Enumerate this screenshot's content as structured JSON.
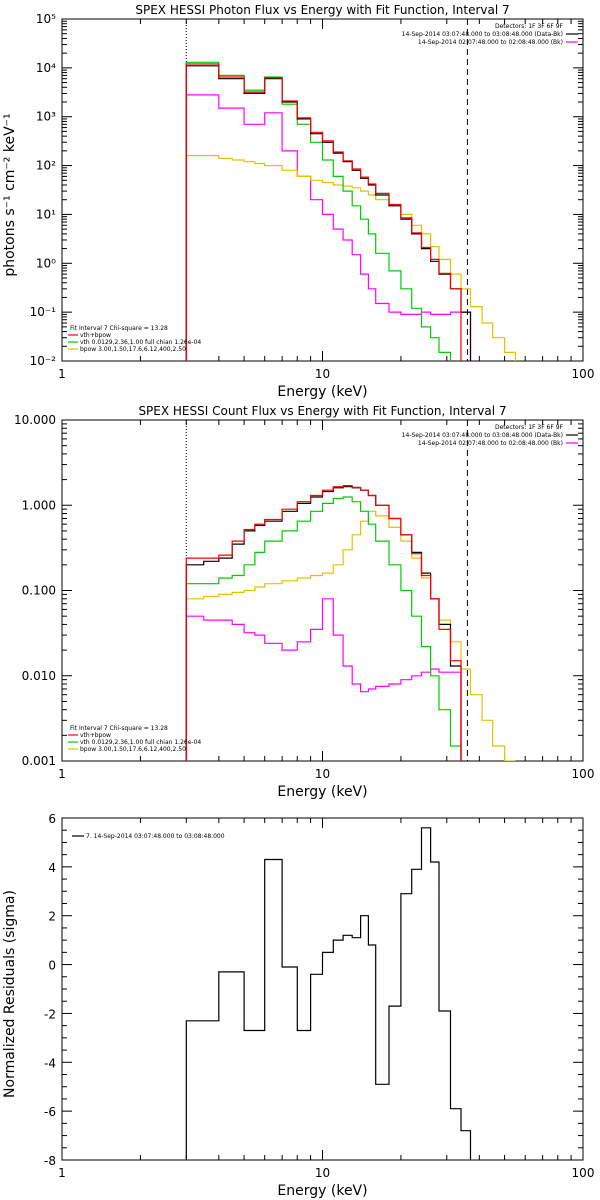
{
  "colors": {
    "data": "#000000",
    "total": "#ff0000",
    "vth": "#00cc00",
    "bpow": "#e6c000",
    "background": "#ff00ff"
  },
  "chart_data": [
    {
      "type": "line",
      "title": "SPEX HESSI Photon Flux vs Energy with Fit Function, Interval 7",
      "xlabel": "Energy (keV)",
      "ylabel": "photons s⁻¹ cm⁻² keV⁻¹",
      "xscale": "log",
      "yscale": "log",
      "xlim": [
        1,
        100
      ],
      "ylim": [
        0.01,
        100000
      ],
      "xticks": [
        "1",
        "10",
        "100"
      ],
      "yticks": [
        "10⁻²",
        "10⁻¹",
        "10⁰",
        "10¹",
        "10²",
        "10³",
        "10⁴",
        "10⁵"
      ],
      "grid": false,
      "legend_top": [
        "Detectors: 1F 3F 6F 9F",
        "14-Sep-2014 03:07:48.000 to 03:08:48.000 (Data-Bk)",
        "14-Sep-2014 02:07:48.000 to 02:08:48.000 (Bk)"
      ],
      "legend_bottom": [
        "Fit Interval 7   Chi-square = 13.28",
        "vth+bpow",
        "vth 0.0129,2.36,1.00  full chian 1.26e-04",
        "bpow 3.00,1.50,17.6,6.12,400,2.50"
      ],
      "vlines": [
        3,
        36
      ],
      "edges": [
        3,
        3.5,
        4,
        4.5,
        5,
        5.5,
        6,
        7,
        8,
        9,
        10,
        11,
        12,
        13,
        14,
        15,
        16,
        18,
        20,
        22,
        24,
        26,
        28,
        31,
        34,
        37,
        41,
        45,
        50,
        55,
        60
      ],
      "series": [
        {
          "name": "data",
          "values": [
            11000,
            11000,
            6000,
            6000,
            3000,
            3000,
            6000,
            2000,
            900,
            450,
            300,
            180,
            120,
            80,
            55,
            40,
            25,
            15,
            8,
            4,
            2,
            1.1,
            0.6,
            0.3,
            0.1,
            null,
            null,
            null,
            null,
            null
          ]
        },
        {
          "name": "vth+bpow",
          "values": [
            12000,
            12000,
            6500,
            6500,
            3200,
            3200,
            6300,
            2100,
            950,
            480,
            320,
            190,
            125,
            85,
            58,
            42,
            27,
            16,
            8.5,
            4.2,
            2.1,
            1.2,
            0.62,
            0.3,
            null,
            null,
            null,
            null,
            null,
            null
          ]
        },
        {
          "name": "vth",
          "values": [
            13000,
            13000,
            7000,
            7000,
            3500,
            3500,
            6500,
            1800,
            700,
            300,
            130,
            60,
            30,
            15,
            8,
            4,
            1.6,
            0.7,
            0.3,
            0.12,
            0.05,
            0.03,
            0.015,
            null,
            null,
            null,
            null,
            null,
            null,
            null
          ]
        },
        {
          "name": "bpow",
          "values": [
            160,
            160,
            140,
            130,
            120,
            110,
            100,
            80,
            60,
            50,
            45,
            40,
            38,
            35,
            30,
            25,
            20,
            15,
            10,
            6,
            4,
            2.2,
            1.2,
            0.6,
            0.3,
            0.13,
            0.06,
            0.03,
            0.015,
            null
          ]
        },
        {
          "name": "background",
          "values": [
            2800,
            2800,
            1500,
            1500,
            700,
            700,
            1200,
            200,
            60,
            20,
            10,
            5,
            3,
            1.5,
            0.6,
            0.3,
            0.15,
            0.1,
            0.09,
            0.09,
            0.1,
            0.09,
            0.09,
            0.1,
            0.1,
            null,
            null,
            null,
            null,
            null
          ]
        }
      ]
    },
    {
      "type": "line",
      "title": "SPEX HESSI Count Flux vs Energy with Fit Function, Interval 7",
      "xlabel": "Energy (keV)",
      "ylabel": "",
      "xscale": "log",
      "yscale": "log",
      "xlim": [
        1,
        100
      ],
      "ylim": [
        0.001,
        10
      ],
      "xticks": [
        "1",
        "10",
        "100"
      ],
      "yticks": [
        "0.001",
        "0.010",
        "0.100",
        "1.000",
        "10.000"
      ],
      "grid": false,
      "legend_top": [
        "Detectors: 1F 3F 6F 9F",
        "14-Sep-2014 03:07:48.000 to 03:08:48.000 (Data-Bk)",
        "14-Sep-2014 02:07:48.000 to 02:08:48.000 (Bk)"
      ],
      "legend_bottom": [
        "Fit Interval 7   Chi-square = 13.28",
        "vth+bpow",
        "vth 0.0129,2.36,1.00  full chian 1.26e-04",
        "bpow 3.00,1.50,17.6,6.12,400,2.50"
      ],
      "vlines": [
        3,
        36
      ],
      "edges": [
        3,
        3.5,
        4,
        4.5,
        5,
        5.5,
        6,
        7,
        8,
        9,
        10,
        11,
        12,
        13,
        14,
        15,
        16,
        18,
        20,
        22,
        24,
        26,
        28,
        31,
        34,
        37,
        41,
        45,
        50,
        55,
        60
      ],
      "series": [
        {
          "name": "data",
          "values": [
            0.2,
            0.22,
            0.24,
            0.35,
            0.5,
            0.58,
            0.65,
            0.85,
            1.05,
            1.25,
            1.45,
            1.6,
            1.65,
            1.6,
            1.5,
            1.3,
            1.0,
            0.7,
            0.45,
            0.28,
            0.16,
            0.08,
            0.04,
            0.013,
            null,
            null,
            null,
            null,
            null,
            null
          ]
        },
        {
          "name": "vth+bpow",
          "values": [
            0.24,
            0.24,
            0.26,
            0.38,
            0.52,
            0.6,
            0.68,
            0.9,
            1.1,
            1.3,
            1.5,
            1.65,
            1.7,
            1.62,
            1.5,
            1.3,
            1.0,
            0.7,
            0.45,
            0.27,
            0.15,
            0.08,
            0.035,
            0.015,
            null,
            null,
            null,
            null,
            null,
            null
          ]
        },
        {
          "name": "vth",
          "values": [
            0.12,
            0.12,
            0.14,
            0.15,
            0.2,
            0.28,
            0.38,
            0.5,
            0.65,
            0.85,
            1.05,
            1.2,
            1.25,
            1.1,
            0.85,
            0.6,
            0.38,
            0.2,
            0.1,
            0.05,
            0.022,
            0.01,
            0.004,
            0.0015,
            null,
            null,
            null,
            null,
            null,
            null
          ]
        },
        {
          "name": "bpow",
          "values": [
            0.08,
            0.085,
            0.09,
            0.095,
            0.1,
            0.11,
            0.12,
            0.13,
            0.14,
            0.15,
            0.16,
            0.2,
            0.3,
            0.45,
            0.65,
            0.85,
            0.75,
            0.55,
            0.38,
            0.24,
            0.14,
            0.08,
            0.045,
            0.025,
            0.012,
            0.006,
            0.003,
            0.0015,
            0.001,
            null
          ]
        },
        {
          "name": "background",
          "values": [
            0.05,
            0.045,
            0.045,
            0.04,
            0.032,
            0.03,
            0.024,
            0.02,
            0.025,
            0.035,
            0.08,
            0.03,
            0.013,
            0.008,
            0.0065,
            0.007,
            0.0075,
            0.008,
            0.009,
            0.01,
            0.011,
            0.012,
            0.011,
            0.011,
            null,
            null,
            null,
            null,
            null,
            null
          ]
        }
      ]
    },
    {
      "type": "line",
      "title": "",
      "xlabel": "Energy (keV)",
      "ylabel": "Normalized Residuals (sigma)",
      "xscale": "log",
      "yscale": "linear",
      "xlim": [
        1,
        100
      ],
      "ylim": [
        -8,
        6
      ],
      "xticks": [
        "1",
        "10",
        "100"
      ],
      "yticks": [
        "-8",
        "-6",
        "-4",
        "-2",
        "0",
        "2",
        "4",
        "6"
      ],
      "grid": false,
      "legend_top": [
        "7. 14-Sep-2014 03:07:48.000 to 03:08:48.000"
      ],
      "edges": [
        3,
        3.5,
        4,
        4.5,
        5,
        5.5,
        6,
        7,
        8,
        9,
        10,
        11,
        12,
        13,
        14,
        15,
        16,
        18,
        20,
        22,
        24,
        26,
        28,
        31,
        34,
        37
      ],
      "series": [
        {
          "name": "",
          "values": [
            -2.3,
            -2.3,
            -0.3,
            -0.3,
            -2.7,
            -2.7,
            4.3,
            -0.1,
            -2.7,
            -0.4,
            0.5,
            1.0,
            1.2,
            1.1,
            2.0,
            0.8,
            -4.9,
            -1.7,
            2.9,
            3.9,
            5.6,
            4.2,
            -1.9,
            -5.9,
            -6.8
          ]
        }
      ]
    }
  ]
}
